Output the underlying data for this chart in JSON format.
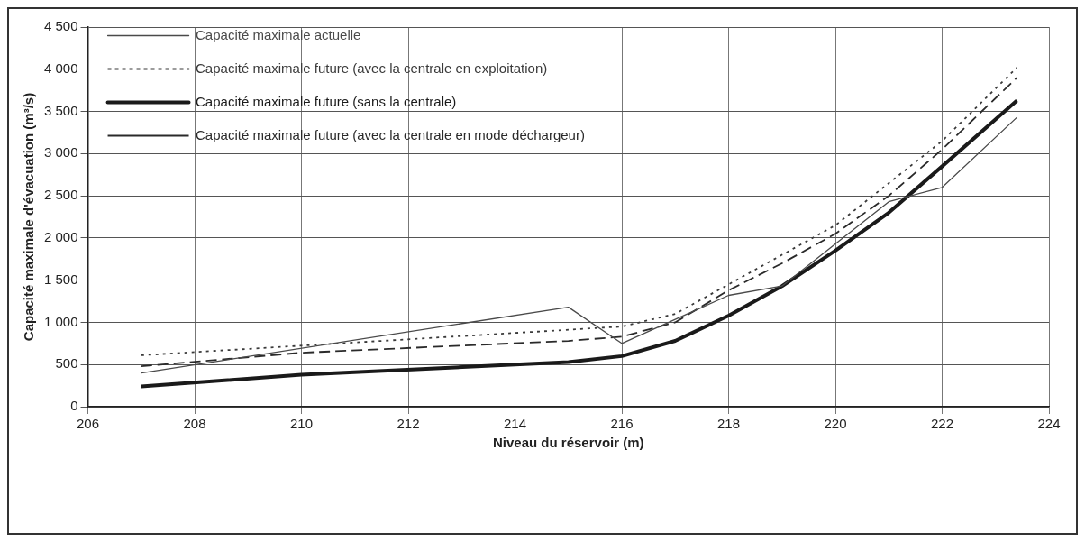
{
  "chart_data": {
    "type": "line",
    "xlabel": "Niveau du réservoir (m)",
    "ylabel": "Capacité maximale d'évacuation (m³/s)",
    "xlim": [
      206,
      224
    ],
    "xticks": [
      206,
      208,
      210,
      212,
      214,
      216,
      218,
      220,
      222,
      224
    ],
    "ylim": [
      0,
      4500
    ],
    "yticks": [
      0,
      500,
      {
        "value": 1000,
        "label": "1 000"
      },
      {
        "value": 1500,
        "label": "1 500"
      },
      {
        "value": 2000,
        "label": "2 000"
      },
      {
        "value": 2500,
        "label": "2 500"
      },
      {
        "value": 3000,
        "label": "3 000"
      },
      {
        "value": 3500,
        "label": "3 500"
      },
      {
        "value": 4000,
        "label": "4 000"
      },
      {
        "value": 4500,
        "label": "4 500"
      }
    ],
    "grid": true,
    "legend": "top left",
    "marker": "none",
    "series": [
      {
        "name": "Capacité maximale actuelle",
        "color": "#4a4a4a",
        "line_style": "solid",
        "x": [
          207,
          215,
          216,
          218,
          219,
          221,
          222,
          223.4
        ],
        "values": [
          400,
          1180,
          750,
          1320,
          1430,
          2430,
          2600,
          3430
        ]
      },
      {
        "name": "Capacité maximale future (avec la centrale en exploitation)",
        "color": "#3a3a3a",
        "line_style": "dotted",
        "x": [
          207,
          216,
          217,
          218,
          220,
          222,
          223.4
        ],
        "values": [
          610,
          950,
          1100,
          1450,
          2150,
          3150,
          4020
        ]
      },
      {
        "name": "Capacité maximale future (sans la centrale)",
        "color": "#1a1a1a",
        "line_style": "solid",
        "x": [
          207,
          210,
          214,
          215,
          216,
          217,
          218,
          219,
          220,
          221,
          222,
          223.4
        ],
        "values": [
          240,
          380,
          500,
          530,
          600,
          780,
          1080,
          1430,
          1850,
          2300,
          2850,
          3630
        ]
      },
      {
        "name": "Capacité maximale future (avec la centrale en mode déchargeur)",
        "color": "#2a2a2a",
        "line_style": "dashed",
        "x": [
          207,
          210,
          215,
          216,
          217,
          218,
          219,
          220,
          221,
          222,
          223.4
        ],
        "values": [
          480,
          640,
          780,
          830,
          1000,
          1380,
          1700,
          2050,
          2500,
          3050,
          3900
        ]
      }
    ]
  }
}
